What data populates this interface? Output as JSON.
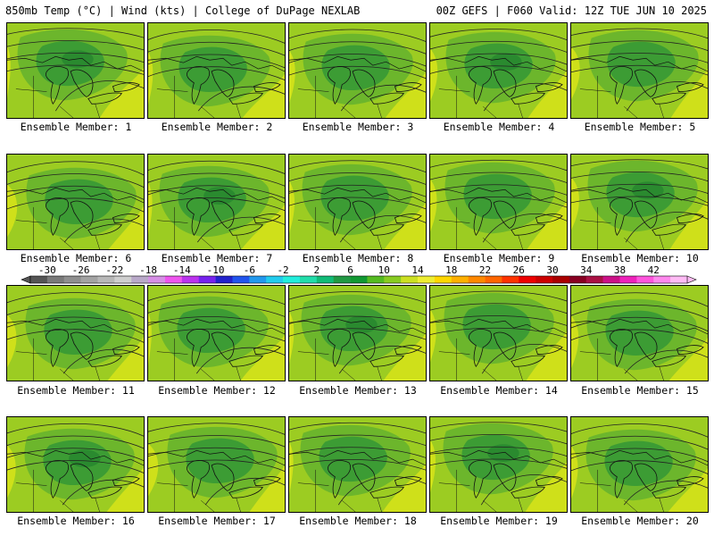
{
  "header": {
    "title_left": "850mb Temp (°C) | Wind (kts) | College of DuPage NEXLAB",
    "title_right": "00Z GEFS | F060 Valid: 12Z TUE JUN 10 2025"
  },
  "members": [
    {
      "label": "Ensemble Member: 1"
    },
    {
      "label": "Ensemble Member: 2"
    },
    {
      "label": "Ensemble Member: 3"
    },
    {
      "label": "Ensemble Member: 4"
    },
    {
      "label": "Ensemble Member: 5"
    },
    {
      "label": "Ensemble Member: 6"
    },
    {
      "label": "Ensemble Member: 7"
    },
    {
      "label": "Ensemble Member: 8"
    },
    {
      "label": "Ensemble Member: 9"
    },
    {
      "label": "Ensemble Member: 10"
    },
    {
      "label": "Ensemble Member: 11"
    },
    {
      "label": "Ensemble Member: 12"
    },
    {
      "label": "Ensemble Member: 13"
    },
    {
      "label": "Ensemble Member: 14"
    },
    {
      "label": "Ensemble Member: 15"
    },
    {
      "label": "Ensemble Member: 16"
    },
    {
      "label": "Ensemble Member: 17"
    },
    {
      "label": "Ensemble Member: 18"
    },
    {
      "label": "Ensemble Member: 19"
    },
    {
      "label": "Ensemble Member: 20"
    }
  ],
  "colorbar": {
    "tick_labels": [
      "-30",
      "-26",
      "-22",
      "-18",
      "-14",
      "-10",
      "-6",
      "-2",
      "2",
      "6",
      "10",
      "14",
      "18",
      "22",
      "26",
      "30",
      "34",
      "38",
      "42"
    ],
    "colors": [
      "#555555",
      "#7a7a7a",
      "#8f8f8f",
      "#a3a3a3",
      "#b8b8b8",
      "#cfcfcf",
      "#b9a9c9",
      "#d68fe6",
      "#ee55ee",
      "#bb33ee",
      "#7722ee",
      "#2222cc",
      "#2255ee",
      "#2299ee",
      "#22ccee",
      "#22eedd",
      "#22ddaa",
      "#11bb77",
      "#229944",
      "#119933",
      "#55bb22",
      "#88cc22",
      "#cce022",
      "#eeee33",
      "#ffd700",
      "#ffb000",
      "#ff8800",
      "#ff6600",
      "#ff3300",
      "#ee0000",
      "#cc0000",
      "#aa0000",
      "#880022",
      "#aa1144",
      "#cc1188",
      "#ee22bb",
      "#ff55dd",
      "#ff88ee",
      "#ffbbf5"
    ]
  },
  "palette": {
    "warm": "#cfe01a",
    "light": "#9ccc22",
    "mid": "#6cb62c",
    "dark": "#3c9c34",
    "deep": "#2a8a2f"
  }
}
